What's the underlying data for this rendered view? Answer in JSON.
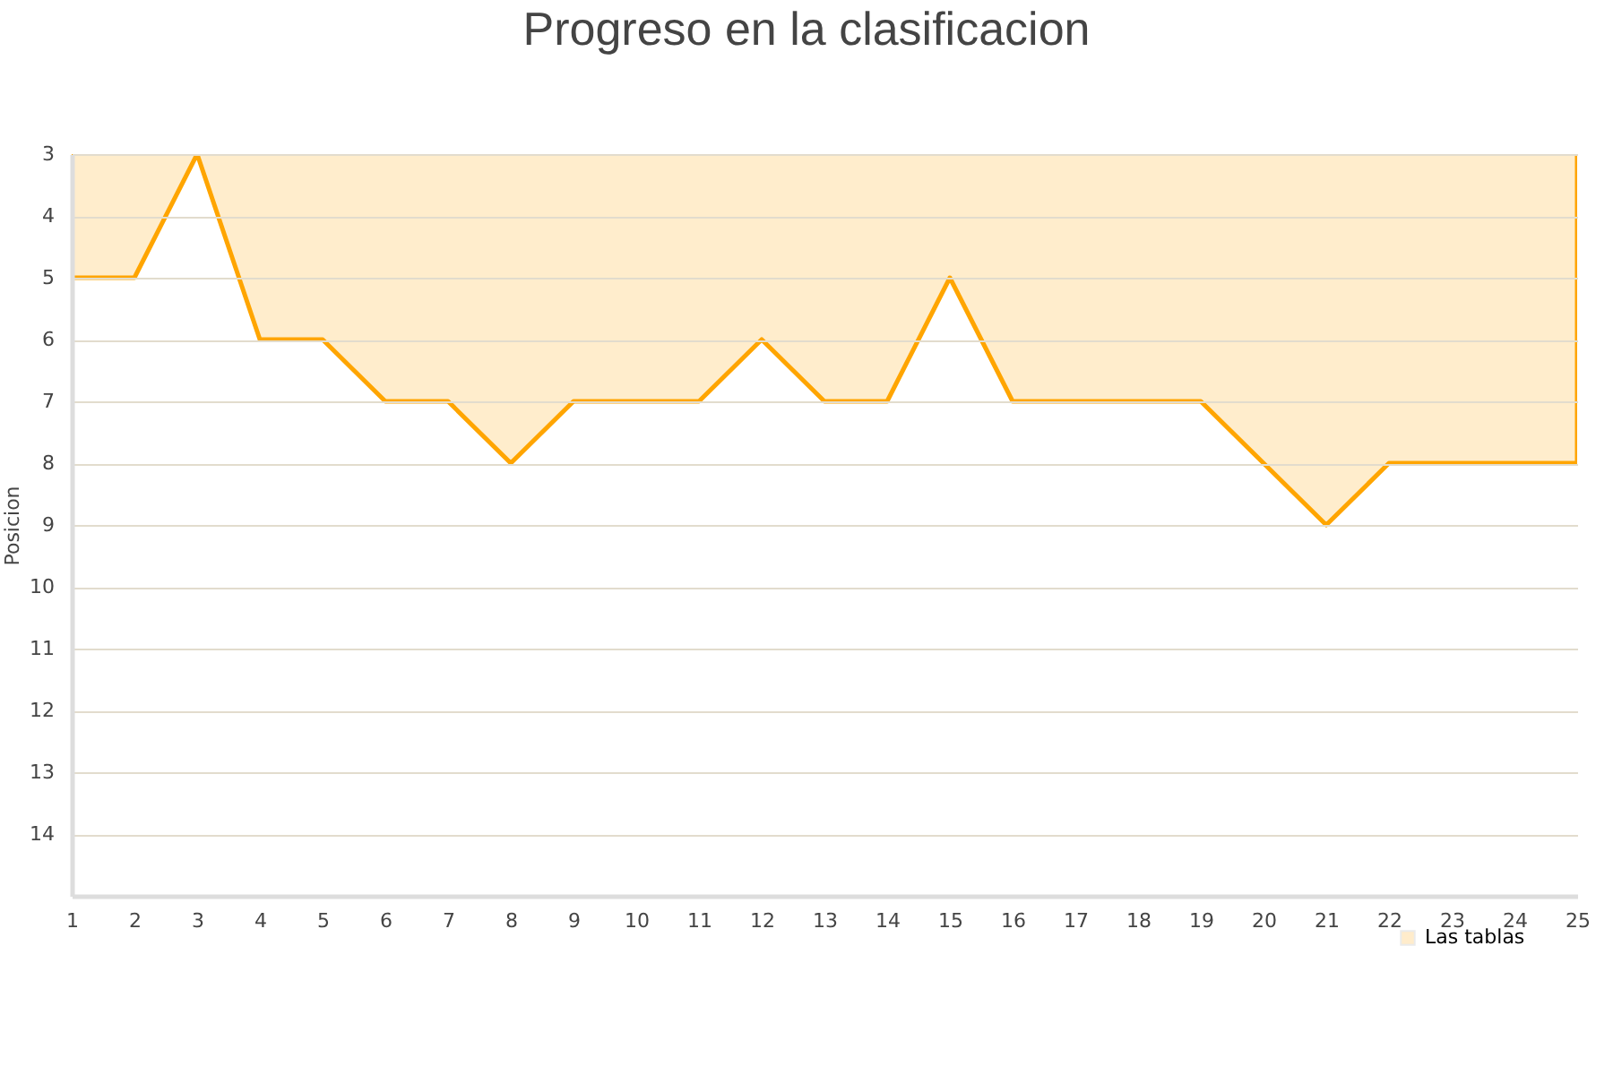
{
  "chart_data": {
    "type": "area",
    "title": "Progreso en la clasificacion",
    "ylabel": "Posicion",
    "x": [
      1,
      2,
      3,
      4,
      5,
      6,
      7,
      8,
      9,
      10,
      11,
      12,
      13,
      14,
      15,
      16,
      17,
      18,
      19,
      20,
      21,
      22,
      23,
      24,
      25
    ],
    "series": [
      {
        "name": "Las tablas",
        "color": "#ffa500",
        "values": [
          5,
          5,
          3,
          6,
          6,
          7,
          7,
          8,
          7,
          7,
          7,
          6,
          7,
          7,
          5,
          7,
          7,
          7,
          7,
          8,
          9,
          8,
          8,
          8,
          8
        ]
      }
    ],
    "xlim": [
      1,
      25
    ],
    "xticks": [
      1,
      2,
      3,
      4,
      5,
      6,
      7,
      8,
      9,
      10,
      11,
      12,
      13,
      14,
      15,
      16,
      17,
      18,
      19,
      20,
      21,
      22,
      23,
      24,
      25
    ],
    "ylim": [
      15,
      3
    ],
    "yticks": [
      3,
      4,
      5,
      6,
      7,
      8,
      9,
      10,
      11,
      12,
      13,
      14
    ],
    "grid": "y",
    "legend": "bottom right"
  }
}
